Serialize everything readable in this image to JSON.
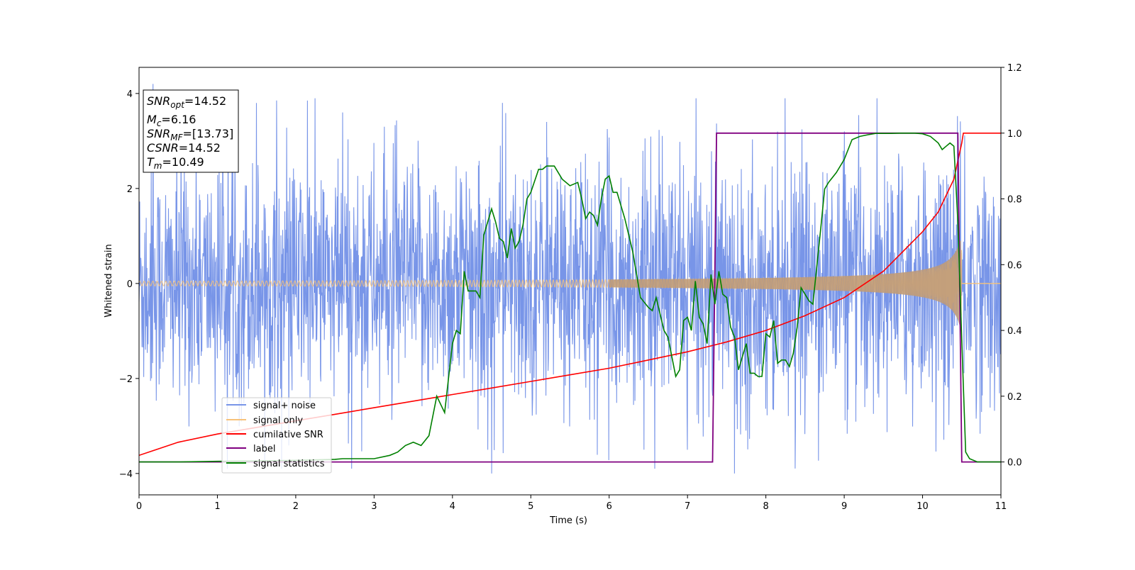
{
  "chart_data": {
    "type": "line",
    "xlabel": "Time (s)",
    "ylabel": "Whitened strain",
    "xlim": [
      0,
      11
    ],
    "ylim_left": [
      -4.45,
      4.55
    ],
    "ylim_right": [
      -0.1,
      1.2
    ],
    "x_ticks": [
      0,
      1,
      2,
      3,
      4,
      5,
      6,
      7,
      8,
      9,
      10,
      11
    ],
    "y_left_ticks": [
      -4,
      -2,
      0,
      2,
      4
    ],
    "y_right_ticks": [
      0.0,
      0.2,
      0.4,
      0.6,
      0.8,
      1.0,
      1.2
    ],
    "x_tick_labels": [
      "0",
      "1",
      "2",
      "3",
      "4",
      "5",
      "6",
      "7",
      "8",
      "9",
      "10",
      "11"
    ],
    "y_left_tick_labels": [
      "−4",
      "−2",
      "0",
      "2",
      "4"
    ],
    "y_right_tick_labels": [
      "0.0",
      "0.2",
      "0.4",
      "0.6",
      "0.8",
      "1.0",
      "1.2"
    ],
    "legend_position": "lower-left",
    "colors": {
      "signal_noise": "#7895e8",
      "signal_only": "#f7c27a",
      "cumulative_snr": "#ff0000",
      "label": "#800080",
      "signal_statistics": "#008000"
    },
    "series": [
      {
        "name": "signal+ noise",
        "axis": "left",
        "kind": "noisy_band",
        "band_half_width_approx": 2.0,
        "peaks": [
          [
            0.18,
            4.2
          ],
          [
            1.5,
            3.8
          ],
          [
            2.15,
            3.85
          ],
          [
            2.6,
            3.6
          ],
          [
            4.5,
            -4.0
          ],
          [
            5.2,
            3.4
          ],
          [
            7.0,
            -3.5
          ],
          [
            7.6,
            -4.0
          ],
          [
            9.0,
            3.2
          ],
          [
            4.45,
            -3.5
          ]
        ]
      },
      {
        "name": "signal only",
        "axis": "left",
        "kind": "chirp",
        "start_amplitude": 0.05,
        "merger_time": 10.5,
        "peak_amplitude": 0.9
      },
      {
        "name": "cumilative SNR",
        "axis": "right",
        "x": [
          0,
          0.5,
          1,
          1.5,
          2,
          2.5,
          3,
          3.5,
          4,
          4.5,
          5,
          5.5,
          6,
          6.5,
          7,
          7.5,
          8,
          8.5,
          9,
          9.5,
          10,
          10.2,
          10.4,
          10.5,
          10.52,
          11
        ],
        "y": [
          0.02,
          0.06,
          0.085,
          0.105,
          0.125,
          0.145,
          0.165,
          0.185,
          0.205,
          0.225,
          0.245,
          0.265,
          0.285,
          0.31,
          0.335,
          0.365,
          0.4,
          0.445,
          0.5,
          0.58,
          0.7,
          0.76,
          0.86,
          0.97,
          1.0,
          1.0
        ]
      },
      {
        "name": "label",
        "axis": "right",
        "x": [
          0,
          7.32,
          7.37,
          10.45,
          10.5,
          11
        ],
        "y": [
          0.0,
          0.0,
          1.0,
          1.0,
          0.0,
          0.0
        ]
      },
      {
        "name": "signal statistics",
        "axis": "right",
        "x": [
          0,
          0.5,
          1,
          1.5,
          2,
          2.5,
          2.6,
          3,
          3.2,
          3.3,
          3.4,
          3.5,
          3.6,
          3.7,
          3.8,
          3.9,
          4.0,
          4.05,
          4.1,
          4.15,
          4.2,
          4.3,
          4.35,
          4.4,
          4.5,
          4.55,
          4.6,
          4.65,
          4.7,
          4.75,
          4.8,
          4.85,
          4.9,
          4.95,
          5.0,
          5.1,
          5.15,
          5.2,
          5.3,
          5.4,
          5.5,
          5.6,
          5.65,
          5.7,
          5.75,
          5.8,
          5.85,
          5.9,
          5.95,
          6.0,
          6.05,
          6.1,
          6.2,
          6.3,
          6.4,
          6.5,
          6.55,
          6.6,
          6.7,
          6.75,
          6.8,
          6.85,
          6.9,
          6.95,
          7.0,
          7.05,
          7.1,
          7.15,
          7.2,
          7.25,
          7.3,
          7.35,
          7.4,
          7.45,
          7.5,
          7.55,
          7.6,
          7.65,
          7.7,
          7.75,
          7.8,
          7.85,
          7.9,
          7.95,
          8.0,
          8.05,
          8.1,
          8.15,
          8.2,
          8.25,
          8.3,
          8.35,
          8.4,
          8.45,
          8.5,
          8.55,
          8.6,
          8.7,
          8.75,
          8.8,
          8.9,
          9.0,
          9.1,
          9.2,
          9.3,
          9.4,
          9.5,
          9.6,
          9.7,
          9.8,
          9.9,
          10.0,
          10.1,
          10.2,
          10.25,
          10.3,
          10.35,
          10.4,
          10.45,
          10.5,
          10.55,
          10.6,
          10.7,
          10.8,
          11.0
        ],
        "y": [
          0.0,
          0.0,
          0.002,
          0.003,
          0.005,
          0.008,
          0.01,
          0.01,
          0.02,
          0.03,
          0.05,
          0.06,
          0.05,
          0.08,
          0.2,
          0.15,
          0.36,
          0.4,
          0.39,
          0.58,
          0.52,
          0.52,
          0.5,
          0.69,
          0.77,
          0.73,
          0.68,
          0.67,
          0.62,
          0.71,
          0.65,
          0.67,
          0.72,
          0.8,
          0.82,
          0.89,
          0.89,
          0.9,
          0.9,
          0.86,
          0.84,
          0.85,
          0.8,
          0.74,
          0.76,
          0.75,
          0.72,
          0.8,
          0.86,
          0.87,
          0.82,
          0.82,
          0.74,
          0.64,
          0.5,
          0.47,
          0.46,
          0.5,
          0.4,
          0.38,
          0.32,
          0.26,
          0.28,
          0.43,
          0.44,
          0.4,
          0.55,
          0.44,
          0.42,
          0.36,
          0.57,
          0.48,
          0.58,
          0.51,
          0.5,
          0.41,
          0.38,
          0.28,
          0.32,
          0.36,
          0.27,
          0.27,
          0.26,
          0.26,
          0.39,
          0.38,
          0.43,
          0.3,
          0.31,
          0.31,
          0.29,
          0.33,
          0.41,
          0.53,
          0.51,
          0.49,
          0.48,
          0.71,
          0.83,
          0.85,
          0.88,
          0.92,
          0.98,
          0.99,
          0.995,
          0.999,
          0.999,
          0.999,
          1.0,
          1.0,
          1.0,
          0.998,
          0.99,
          0.97,
          0.95,
          0.96,
          0.97,
          0.96,
          0.73,
          0.37,
          0.03,
          0.01,
          0.0,
          0.0,
          0.0
        ]
      }
    ],
    "info_box": {
      "snr_opt": {
        "var": "SNR",
        "sub": "opt",
        "value": "=14.52"
      },
      "mc": {
        "var": "M",
        "sub": "c",
        "value": "=6.16"
      },
      "snr_mf": {
        "var": "SNR",
        "sub": "MF",
        "value": "=[13.73]"
      },
      "csnr": {
        "var": "CSNR",
        "sub": "",
        "value": "=14.52"
      },
      "tm": {
        "var": "T",
        "sub": "m",
        "value": "=10.49"
      }
    }
  }
}
